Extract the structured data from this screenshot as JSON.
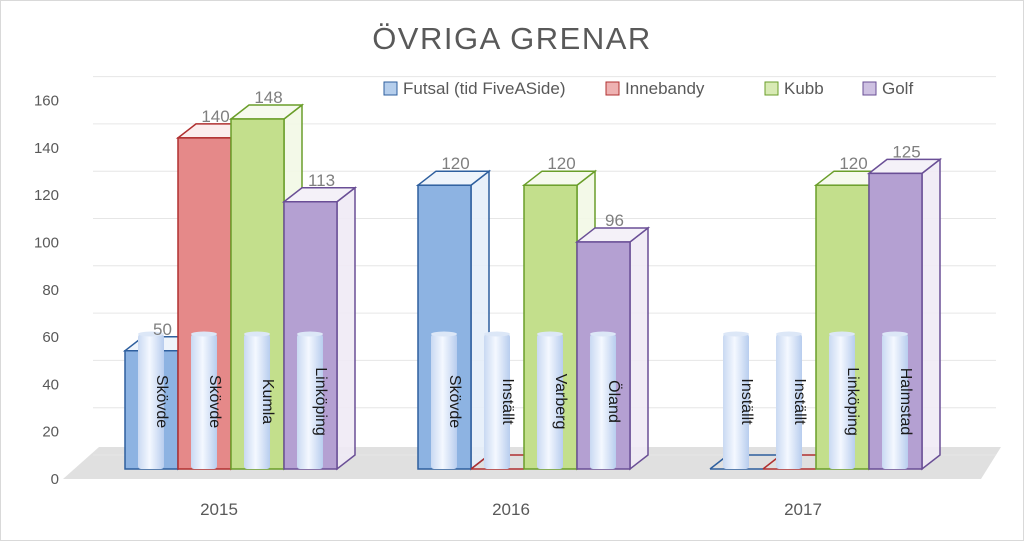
{
  "chart_data": {
    "type": "bar",
    "title": "ÖVRIGA GRENAR",
    "categories": [
      "2015",
      "2016",
      "2017"
    ],
    "ylim": [
      0,
      160
    ],
    "yticks": [
      0,
      20,
      40,
      60,
      80,
      100,
      120,
      140,
      160
    ],
    "grid": true,
    "legend_position": "top-right",
    "series": [
      {
        "name": "Futsal (tid FiveASide)",
        "color": "#8db3e2",
        "edge": "#2e5f9e",
        "values": [
          50,
          120,
          0
        ],
        "value_labels": [
          "50",
          "120",
          ""
        ],
        "places": [
          "Skövde",
          "Skövde",
          "Inställt"
        ]
      },
      {
        "name": "Innebandy",
        "color": "#e58989",
        "edge": "#b03030",
        "values": [
          140,
          0,
          0
        ],
        "value_labels": [
          "140",
          "",
          ""
        ],
        "places": [
          "Skövde",
          "Inställt",
          "Inställt"
        ]
      },
      {
        "name": "Kubb",
        "color": "#c3df8c",
        "edge": "#6a9e2a",
        "values": [
          148,
          120,
          120
        ],
        "value_labels": [
          "148",
          "120",
          "120"
        ],
        "places": [
          "Kumla",
          "Varberg",
          "Linköping"
        ]
      },
      {
        "name": "Golf",
        "color": "#b4a0d2",
        "edge": "#6a4f96",
        "values": [
          113,
          96,
          125
        ],
        "value_labels": [
          "113",
          "96",
          "125"
        ],
        "places": [
          "Linköping",
          "Öland",
          "Halmstad"
        ]
      }
    ]
  }
}
